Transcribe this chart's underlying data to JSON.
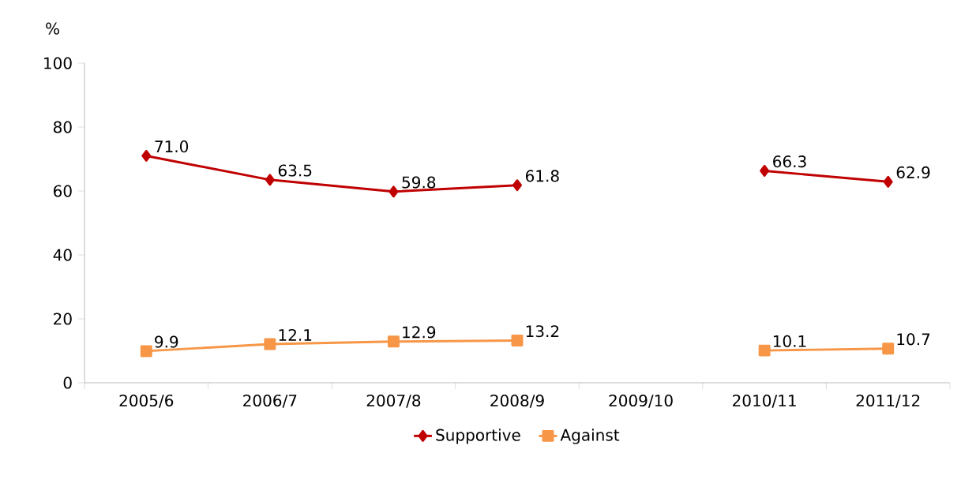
{
  "chart_data": {
    "type": "line",
    "ylabel": "%",
    "categories": [
      "2005/6",
      "2006/7",
      "2007/8",
      "2008/9",
      "2009/10",
      "2010/11",
      "2011/12"
    ],
    "series": [
      {
        "name": "Supportive",
        "color": "#c00000",
        "marker": "diamond",
        "values": [
          71.0,
          63.5,
          59.8,
          61.8,
          null,
          66.3,
          62.9
        ],
        "value_labels": [
          "71.0",
          "63.5",
          "59.8",
          "61.8",
          null,
          "66.3",
          "62.9"
        ]
      },
      {
        "name": "Against",
        "color": "#f79646",
        "marker": "square",
        "values": [
          9.9,
          12.1,
          12.9,
          13.2,
          null,
          10.1,
          10.7
        ],
        "value_labels": [
          "9.9",
          "12.1",
          "12.9",
          "13.2",
          null,
          "10.1",
          "10.7"
        ]
      }
    ],
    "ylim": [
      0,
      100
    ],
    "yticks": [
      0,
      20,
      40,
      60,
      80,
      100
    ],
    "grid": false,
    "legend": "bottom",
    "line_style": "solid"
  }
}
